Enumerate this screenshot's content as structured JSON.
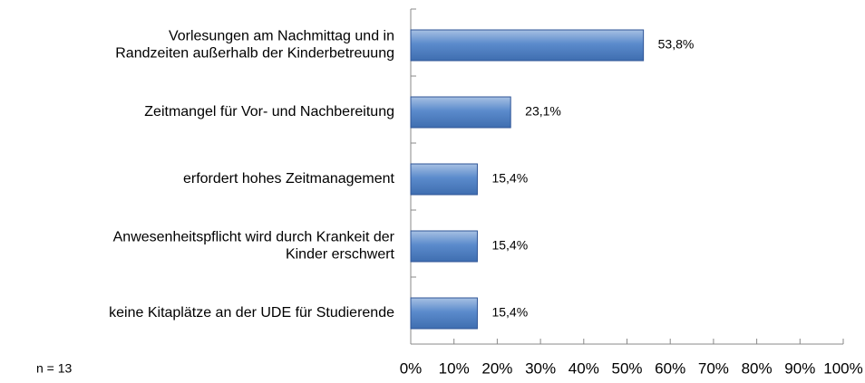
{
  "chart_data": {
    "type": "hbar",
    "categories": [
      [
        "Vorlesungen am Nachmittag und in",
        "Randzeiten außerhalb der Kinderbetreuung"
      ],
      [
        "Zeitmangel für Vor- und Nachbereitung"
      ],
      [
        "erfordert hohes Zeitmanagement"
      ],
      [
        "Anwesenheitspflicht wird durch Krankeit der",
        "Kinder erschwert"
      ],
      [
        "keine Kitaplätze an der UDE für Studierende"
      ]
    ],
    "values": [
      53.8,
      23.1,
      15.4,
      15.4,
      15.4
    ],
    "value_labels": [
      "53,8%",
      "23,1%",
      "15,4%",
      "15,4%",
      "15,4%"
    ],
    "color": "#4f81bd",
    "xlim": [
      0,
      100
    ],
    "xticks": [
      {
        "value": 0,
        "label": "0%"
      },
      {
        "value": 10,
        "label": "10%"
      },
      {
        "value": 20,
        "label": "20%"
      },
      {
        "value": 30,
        "label": "30%"
      },
      {
        "value": 40,
        "label": "40%"
      },
      {
        "value": 50,
        "label": "50%"
      },
      {
        "value": 60,
        "label": "60%"
      },
      {
        "value": 70,
        "label": "70%"
      },
      {
        "value": 80,
        "label": "80%"
      },
      {
        "value": 90,
        "label": "90%"
      },
      {
        "value": 100,
        "label": "100%"
      }
    ],
    "grid": false,
    "annotation": "n = 13"
  }
}
